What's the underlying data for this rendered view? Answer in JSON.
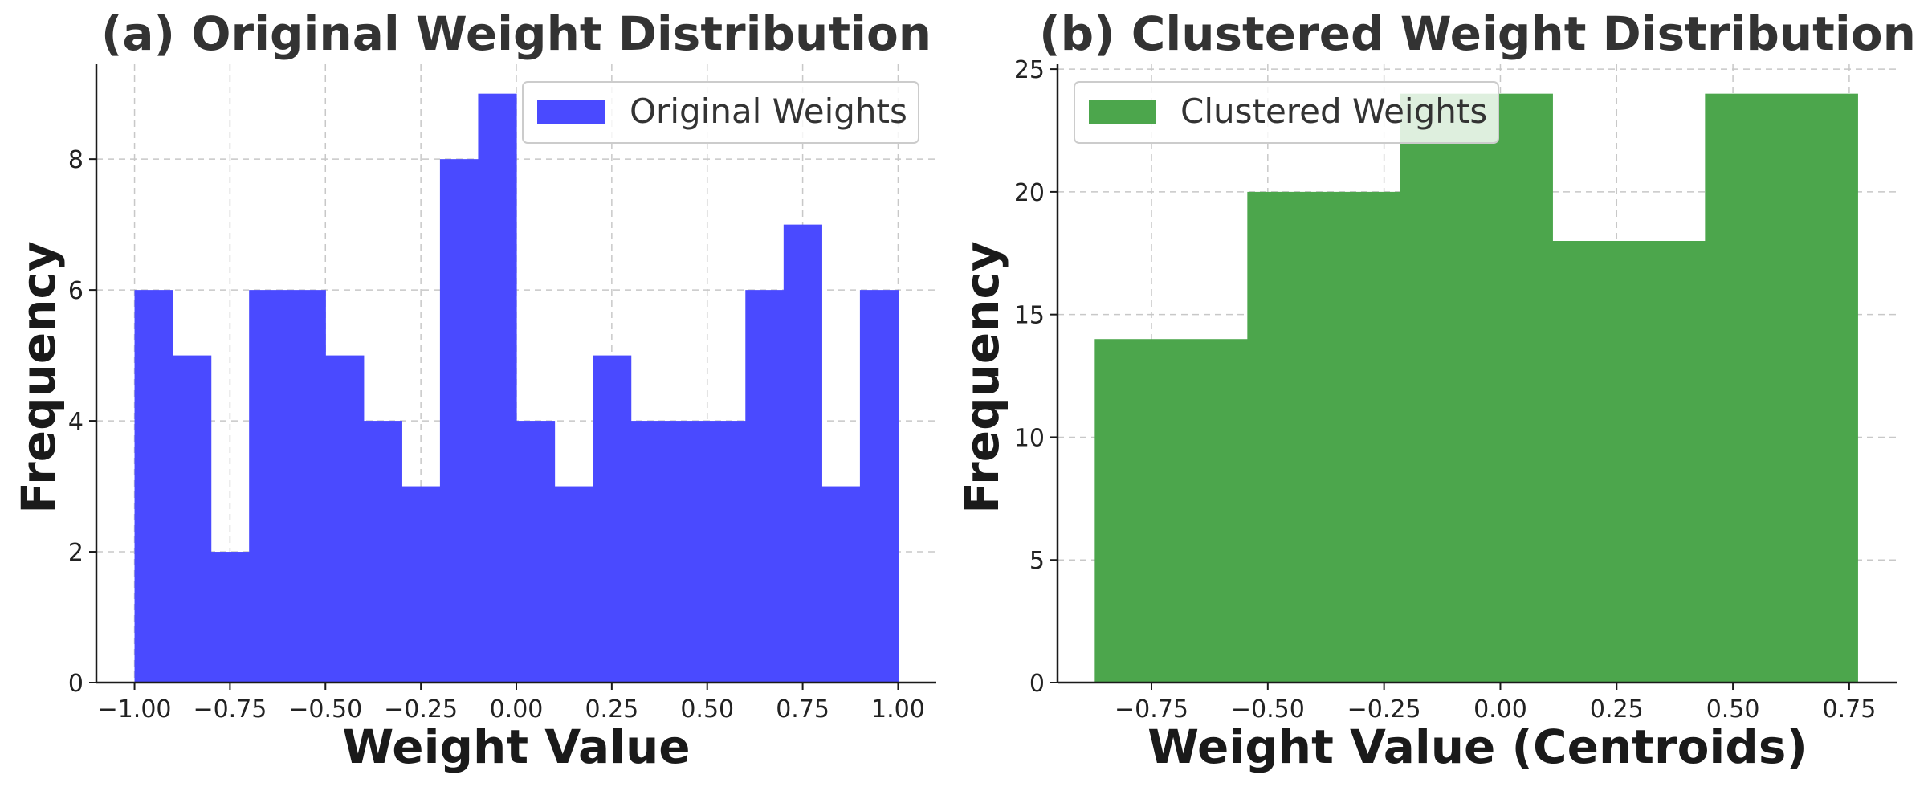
{
  "chart_data": [
    {
      "type": "bar",
      "title": "(a) Original Weight Distribution",
      "xlabel": "Weight Value",
      "ylabel": "Frequency",
      "xlim": [
        -1.1,
        1.1
      ],
      "ylim": [
        0,
        9.45
      ],
      "xticks": [
        -1.0,
        -0.75,
        -0.5,
        -0.25,
        0.0,
        0.25,
        0.5,
        0.75,
        1.0
      ],
      "xtick_labels": [
        "−1.00",
        "−0.75",
        "−0.50",
        "−0.25",
        "0.00",
        "0.25",
        "0.50",
        "0.75",
        "1.00"
      ],
      "yticks": [
        0,
        2,
        4,
        6,
        8
      ],
      "ytick_labels": [
        "0",
        "2",
        "4",
        "6",
        "8"
      ],
      "bin_edges": [
        -1.0,
        -0.9,
        -0.8,
        -0.7,
        -0.6,
        -0.5,
        -0.4,
        -0.3,
        -0.2,
        -0.1,
        0.0,
        0.1,
        0.2,
        0.3,
        0.4,
        0.5,
        0.6,
        0.7,
        0.8,
        0.9,
        1.0
      ],
      "values": [
        6,
        5,
        2,
        6,
        6,
        5,
        4,
        3,
        8,
        9,
        4,
        3,
        5,
        4,
        4,
        4,
        6,
        7,
        3,
        6
      ],
      "legend": "Original Weights",
      "legend_position": "top-right",
      "color": "#4a4aff",
      "grid": true
    },
    {
      "type": "bar",
      "title": "(b) Clustered Weight Distribution",
      "xlabel": "Weight Value (Centroids)",
      "ylabel": "Frequency",
      "xlim": [
        -0.952,
        0.852
      ],
      "ylim": [
        0,
        25.2
      ],
      "xticks": [
        -0.75,
        -0.5,
        -0.25,
        0.0,
        0.25,
        0.5,
        0.75
      ],
      "xtick_labels": [
        "−0.75",
        "−0.50",
        "−0.25",
        "0.00",
        "0.25",
        "0.50",
        "0.75"
      ],
      "yticks": [
        0,
        5,
        10,
        15,
        20,
        25
      ],
      "ytick_labels": [
        "0",
        "5",
        "10",
        "15",
        "20",
        "25"
      ],
      "bin_edges": [
        -0.872,
        -0.544,
        -0.216,
        0.112,
        0.44,
        0.768
      ],
      "values": [
        14,
        20,
        24,
        18,
        24
      ],
      "legend": "Clustered Weights",
      "legend_position": "top-left",
      "color": "#4ca64c",
      "grid": true
    }
  ]
}
